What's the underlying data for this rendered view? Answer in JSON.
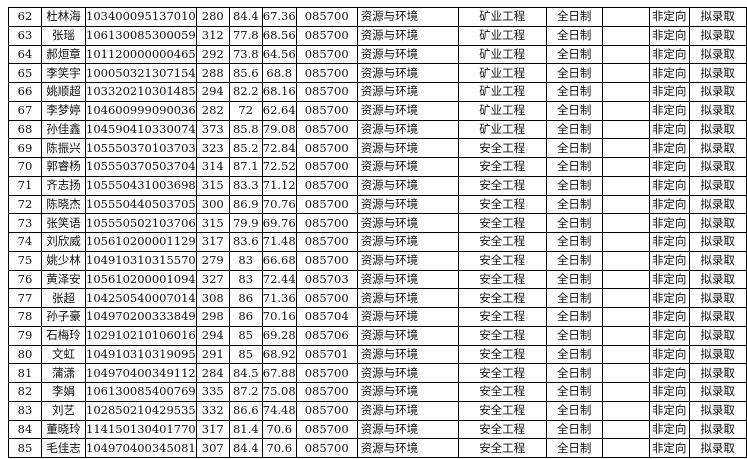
{
  "table": {
    "rows": [
      [
        "62",
        "杜林海",
        "103400095137010",
        "280",
        "84.4",
        "67.36",
        "085700",
        "资源与环境",
        "矿业工程",
        "全日制",
        "",
        "非定向",
        "拟录取"
      ],
      [
        "63",
        "张瑶",
        "106130085300059",
        "312",
        "77.8",
        "68.56",
        "085700",
        "资源与环境",
        "矿业工程",
        "全日制",
        "",
        "非定向",
        "拟录取"
      ],
      [
        "64",
        "郝烜章",
        "101120000000465",
        "292",
        "73.8",
        "64.56",
        "085700",
        "资源与环境",
        "矿业工程",
        "全日制",
        "",
        "非定向",
        "拟录取"
      ],
      [
        "65",
        "李笑宇",
        "100050321307154",
        "288",
        "85.6",
        "68.8",
        "085700",
        "资源与环境",
        "矿业工程",
        "全日制",
        "",
        "非定向",
        "拟录取"
      ],
      [
        "66",
        "姚顺超",
        "103320210301485",
        "294",
        "82.2",
        "68.16",
        "085700",
        "资源与环境",
        "矿业工程",
        "全日制",
        "",
        "非定向",
        "拟录取"
      ],
      [
        "67",
        "李梦婷",
        "104600999090036",
        "282",
        "72",
        "62.64",
        "085700",
        "资源与环境",
        "矿业工程",
        "全日制",
        "",
        "非定向",
        "拟录取"
      ],
      [
        "68",
        "孙佳鑫",
        "104590410330074",
        "373",
        "85.8",
        "79.08",
        "085700",
        "资源与环境",
        "矿业工程",
        "全日制",
        "",
        "非定向",
        "拟录取"
      ],
      [
        "69",
        "陈振兴",
        "105550370103703",
        "323",
        "85.2",
        "72.84",
        "085700",
        "资源与环境",
        "安全工程",
        "全日制",
        "",
        "非定向",
        "拟录取"
      ],
      [
        "70",
        "郭睿杨",
        "105550370503704",
        "314",
        "87.1",
        "72.52",
        "085700",
        "资源与环境",
        "安全工程",
        "全日制",
        "",
        "非定向",
        "拟录取"
      ],
      [
        "71",
        "齐志扬",
        "105550431003698",
        "315",
        "83.3",
        "71.12",
        "085700",
        "资源与环境",
        "安全工程",
        "全日制",
        "",
        "非定向",
        "拟录取"
      ],
      [
        "72",
        "陈晓杰",
        "105550440503705",
        "300",
        "86.9",
        "70.76",
        "085700",
        "资源与环境",
        "安全工程",
        "全日制",
        "",
        "非定向",
        "拟录取"
      ],
      [
        "73",
        "张笑语",
        "105550502103706",
        "315",
        "79.9",
        "69.76",
        "085700",
        "资源与环境",
        "安全工程",
        "全日制",
        "",
        "非定向",
        "拟录取"
      ],
      [
        "74",
        "刘欣威",
        "105610200001129",
        "317",
        "83.6",
        "71.48",
        "085700",
        "资源与环境",
        "安全工程",
        "全日制",
        "",
        "非定向",
        "拟录取"
      ],
      [
        "75",
        "姚少林",
        "104910310315570",
        "279",
        "83",
        "66.68",
        "085700",
        "资源与环境",
        "安全工程",
        "全日制",
        "",
        "非定向",
        "拟录取"
      ],
      [
        "76",
        "黄泽安",
        "105610200001094",
        "327",
        "83",
        "72.44",
        "085703",
        "资源与环境",
        "安全工程",
        "全日制",
        "",
        "非定向",
        "拟录取"
      ],
      [
        "77",
        "张超",
        "104250540007014",
        "308",
        "86",
        "71.36",
        "085700",
        "资源与环境",
        "安全工程",
        "全日制",
        "",
        "非定向",
        "拟录取"
      ],
      [
        "78",
        "孙子豪",
        "104970200333849",
        "298",
        "86",
        "70.16",
        "085704",
        "资源与环境",
        "安全工程",
        "全日制",
        "",
        "非定向",
        "拟录取"
      ],
      [
        "79",
        "石梅玲",
        "102910210106016",
        "294",
        "85",
        "69.28",
        "085706",
        "资源与环境",
        "安全工程",
        "全日制",
        "",
        "非定向",
        "拟录取"
      ],
      [
        "80",
        "文虹",
        "104910310319095",
        "291",
        "85",
        "68.92",
        "085701",
        "资源与环境",
        "安全工程",
        "全日制",
        "",
        "非定向",
        "拟录取"
      ],
      [
        "81",
        "蒲潇",
        "104970400349112",
        "284",
        "84.5",
        "67.88",
        "085700",
        "资源与环境",
        "安全工程",
        "全日制",
        "",
        "非定向",
        "拟录取"
      ],
      [
        "82",
        "李娟",
        "106130085400769",
        "335",
        "87.2",
        "75.08",
        "085700",
        "资源与环境",
        "安全工程",
        "全日制",
        "",
        "非定向",
        "拟录取"
      ],
      [
        "83",
        "刘艺",
        "102850210429535",
        "332",
        "86.6",
        "74.48",
        "085700",
        "资源与环境",
        "安全工程",
        "全日制",
        "",
        "非定向",
        "拟录取"
      ],
      [
        "84",
        "董晓玲",
        "114150130401770",
        "317",
        "81.4",
        "70.6",
        "085700",
        "资源与环境",
        "安全工程",
        "全日制",
        "",
        "非定向",
        "拟录取"
      ],
      [
        "85",
        "毛佳志",
        "104970400345081",
        "307",
        "84.4",
        "70.6",
        "085700",
        "资源与环境",
        "安全工程",
        "全日制",
        "",
        "非定向",
        "拟录取"
      ]
    ]
  }
}
